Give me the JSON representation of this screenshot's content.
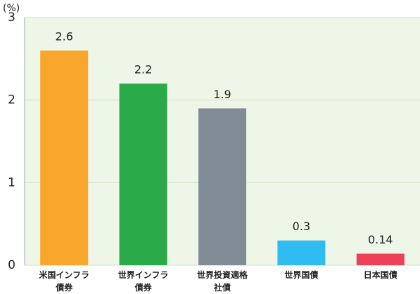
{
  "chart_data": {
    "type": "bar",
    "y_label": "(%)",
    "categories": [
      "米国インフラ\n債券",
      "世界インフラ\n債券",
      "世界投資適格\n社債",
      "世界国債",
      "日本国債"
    ],
    "values": [
      2.6,
      2.2,
      1.9,
      0.3,
      0.14
    ],
    "colors": [
      "#f8a72c",
      "#2baa4a",
      "#818c97",
      "#2fbcf0",
      "#ef4059"
    ],
    "ylim": [
      0,
      3
    ],
    "yticks": [
      0,
      1,
      2,
      3
    ],
    "grid": true
  }
}
